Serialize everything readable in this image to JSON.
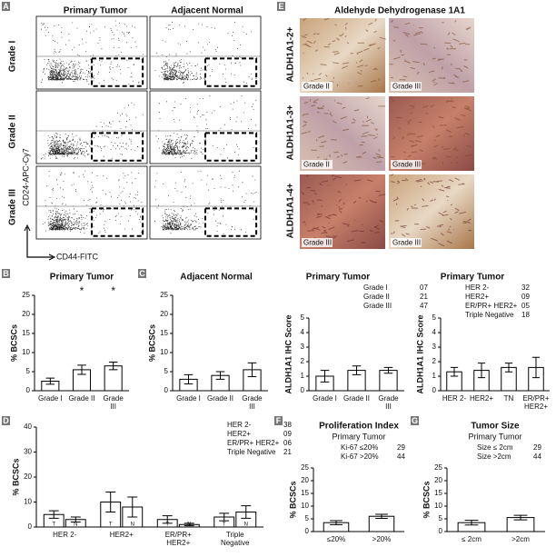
{
  "panels": {
    "A": {
      "label": "A",
      "columns": [
        "Primary Tumor",
        "Adjacent Normal"
      ],
      "rows": [
        "Grade I",
        "Grade II",
        "Grade III"
      ],
      "y_axis": "CD24-APC-Cy7",
      "x_axis": "CD44-FITC"
    },
    "E": {
      "label": "E",
      "title": "Aldehyde Dehydrogenase 1A1",
      "rows": [
        "ALDH1A1-2+",
        "ALDH1A1-3+",
        "ALDH1A1-4+"
      ],
      "image_labels": [
        [
          "Grade II",
          "Grade III"
        ],
        [
          "Grade II",
          "Grade III"
        ],
        [
          "Grade III",
          "Grade III"
        ]
      ]
    }
  },
  "chart_data": [
    {
      "type": "bar",
      "panel": "B",
      "title": "Primary Tumor",
      "y_label": "% BCSCs",
      "categories": [
        "Grade I",
        "Grade II",
        "Grade III"
      ],
      "values": [
        2.5,
        5.5,
        6.5
      ],
      "errors": [
        0.8,
        1.2,
        1.0
      ],
      "annotations": [
        null,
        "*",
        "*"
      ],
      "ylim": [
        0,
        25
      ],
      "yticks": [
        0,
        5,
        10,
        15,
        20,
        25
      ]
    },
    {
      "type": "bar",
      "panel": "C",
      "title": "Adjacent Normal",
      "y_label": "% BCSCs",
      "categories": [
        "Grade I",
        "Grade II",
        "Grade III"
      ],
      "values": [
        3,
        4,
        5.5
      ],
      "errors": [
        1.2,
        1.0,
        1.8
      ],
      "ylim": [
        0,
        25
      ],
      "yticks": [
        0,
        5,
        10,
        15,
        20,
        25
      ]
    },
    {
      "type": "bar",
      "title": "Primary Tumor",
      "y_label": "ALDH1A1 IHC Score",
      "categories": [
        "Grade I",
        "Grade II",
        "Grade III"
      ],
      "values": [
        1,
        1.4,
        1.4
      ],
      "errors": [
        0.4,
        0.3,
        0.2
      ],
      "legend_rows": [
        [
          "Grade I",
          "07"
        ],
        [
          "Grade II",
          "21"
        ],
        [
          "Grade III",
          "47"
        ]
      ],
      "ylim": [
        0,
        5
      ],
      "yticks": [
        0,
        1,
        2,
        3,
        4,
        5
      ]
    },
    {
      "type": "bar",
      "title": "Primary Tumor",
      "y_label": "ALDH1A1 IHC Score",
      "categories": [
        "HER 2-",
        "HER2+",
        "TN",
        "ER/PR+ HER2+"
      ],
      "values": [
        1.3,
        1.4,
        1.6,
        1.6
      ],
      "errors": [
        0.3,
        0.5,
        0.3,
        0.7
      ],
      "legend_rows": [
        [
          "HER 2-",
          "32"
        ],
        [
          "HER2+",
          "09"
        ],
        [
          "ER/PR+ HER2+",
          "05"
        ],
        [
          "Triple Negative",
          "18"
        ]
      ],
      "ylim": [
        0,
        5
      ],
      "yticks": [
        0,
        1,
        2,
        3,
        4,
        5
      ]
    },
    {
      "type": "grouped_bar",
      "panel": "D",
      "y_label": "% BCSCs",
      "categories": [
        "HER 2-",
        "HER2+",
        "ER/PR+ HER2+",
        "Triple Negative"
      ],
      "series": [
        {
          "name": "T",
          "values": [
            5,
            10,
            3,
            4
          ],
          "errors": [
            1.5,
            4,
            1.5,
            1.5
          ]
        },
        {
          "name": "N",
          "values": [
            3,
            8,
            1,
            6
          ],
          "errors": [
            1,
            4,
            0.5,
            2.5
          ]
        }
      ],
      "legend_rows": [
        [
          "HER 2-",
          "38"
        ],
        [
          "HER2+",
          "09"
        ],
        [
          "ER/PR+ HER2+",
          "06"
        ],
        [
          "Triple Negative",
          "21"
        ]
      ],
      "ylim": [
        0,
        40
      ],
      "yticks": [
        0,
        10,
        20,
        30,
        40
      ]
    },
    {
      "type": "bar",
      "panel": "F",
      "title": "Proliferation Index",
      "subtitle": "Primary Tumor",
      "y_label": "% BCSCs",
      "categories": [
        "≤20%",
        ">20%"
      ],
      "values": [
        3.5,
        6
      ],
      "errors": [
        0.8,
        0.8
      ],
      "legend_rows": [
        [
          "Ki-67 ≤20%",
          "29"
        ],
        [
          "Ki-67 >20%",
          "44"
        ]
      ],
      "ylim": [
        0,
        25
      ],
      "yticks": [
        0,
        5,
        10,
        15,
        20,
        25
      ]
    },
    {
      "type": "bar",
      "panel": "G",
      "title": "Tumor Size",
      "subtitle": "Primary Tumor",
      "y_label": "% BCSCs",
      "categories": [
        "≤ 2cm",
        ">2cm"
      ],
      "values": [
        3.5,
        5.5
      ],
      "errors": [
        0.9,
        0.9
      ],
      "legend_rows": [
        [
          "Size ≤ 2cm",
          "29"
        ],
        [
          "Size >2cm",
          "44"
        ]
      ],
      "ylim": [
        0,
        25
      ],
      "yticks": [
        0,
        5,
        10,
        15,
        20,
        25
      ]
    }
  ]
}
